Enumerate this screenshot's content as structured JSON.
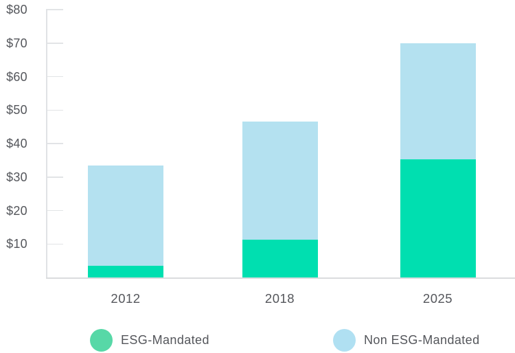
{
  "chart_data": {
    "type": "bar",
    "stacked": true,
    "title": "",
    "xlabel": "",
    "ylabel": "",
    "categories": [
      "2012",
      "2018",
      "2025"
    ],
    "series": [
      {
        "name": "ESG-Mandated",
        "values": [
          3.5,
          11.3,
          35.2
        ],
        "bar_color": "#00dfb0",
        "legend_color": "#57d8a7"
      },
      {
        "name": "Non ESG-Mandated",
        "values": [
          30.0,
          35.2,
          34.8
        ],
        "bar_color": "#b4e1f0",
        "legend_color": "#b0e0f2"
      }
    ],
    "totals": [
      33.5,
      46.5,
      70.0
    ],
    "ylim": [
      0,
      80
    ],
    "y_ticks": [
      {
        "value": 80,
        "label": "$80"
      },
      {
        "value": 70,
        "label": "$70"
      },
      {
        "value": 60,
        "label": "$60"
      },
      {
        "value": 50,
        "label": "$50"
      },
      {
        "value": 40,
        "label": "$40"
      },
      {
        "value": 30,
        "label": "$30"
      },
      {
        "value": 20,
        "label": "$20"
      },
      {
        "value": 10,
        "label": "$10"
      }
    ],
    "grid": "inward-tick-stubs-only",
    "legend_position": "bottom"
  },
  "colors": {
    "background": "#ffffff",
    "axis_line": "#e0e2e5",
    "tick_line": "#e2e4e6",
    "baseline": "#dadcde",
    "text": "#54565b"
  }
}
